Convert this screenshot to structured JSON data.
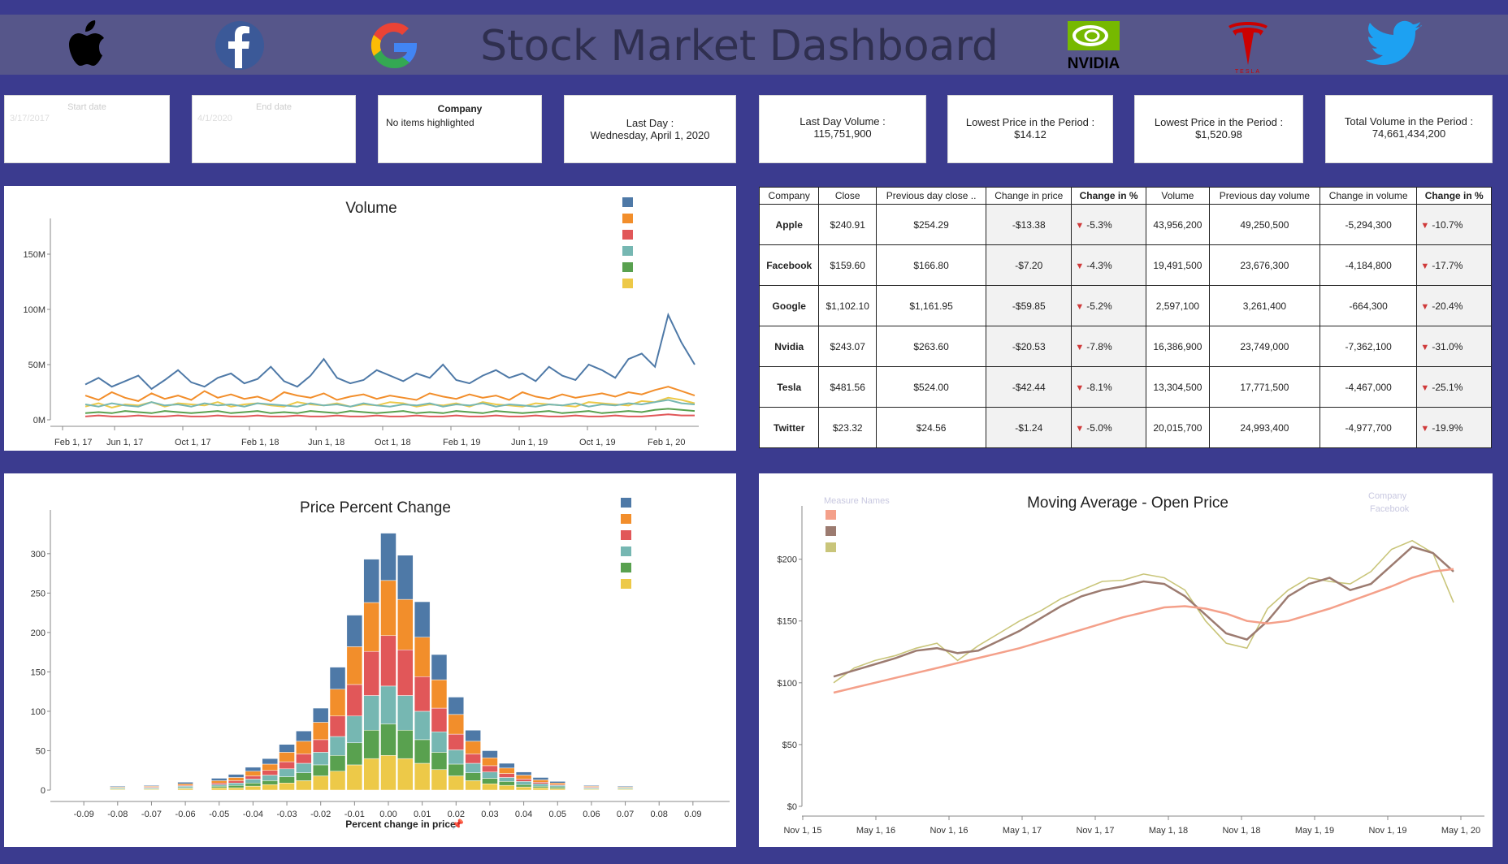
{
  "header": {
    "title": "Stock Market Dashboard",
    "logos": [
      "apple-logo",
      "facebook-logo",
      "google-logo",
      "nvidia-logo",
      "tesla-logo",
      "twitter-logo"
    ],
    "nvidia_text": "NVIDIA",
    "tesla_text": "TESLA"
  },
  "filters": {
    "start": {
      "label": "Start date",
      "value": "3/17/2017"
    },
    "end": {
      "label": "End date",
      "value": "4/1/2020"
    },
    "company": {
      "label": "Company",
      "value": "No items highlighted"
    }
  },
  "kpis": [
    {
      "label": "Last Day :",
      "value": "Wednesday, April 1, 2020"
    },
    {
      "label": "Last Day Volume :",
      "value": "115,751,900"
    },
    {
      "label": "Lowest Price in the Period :",
      "value": "$14.12"
    },
    {
      "label": "Lowest Price in the Period :",
      "value": "$1,520.98"
    },
    {
      "label": "Total Volume in the Period :",
      "value": "74,661,434,200"
    }
  ],
  "table": {
    "headers": [
      "Company",
      "Close",
      "Previous day close ..",
      "Change in price",
      "Change in %",
      "Volume",
      "Previous day volume",
      "Change in volume",
      "Change in %"
    ],
    "rows": [
      [
        "Apple",
        "$240.91",
        "$254.29",
        "-$13.38",
        "-5.3%",
        "43,956,200",
        "49,250,500",
        "-5,294,300",
        "-10.7%"
      ],
      [
        "Facebook",
        "$159.60",
        "$166.80",
        "-$7.20",
        "-4.3%",
        "19,491,500",
        "23,676,300",
        "-4,184,800",
        "-17.7%"
      ],
      [
        "Google",
        "$1,102.10",
        "$1,161.95",
        "-$59.85",
        "-5.2%",
        "2,597,100",
        "3,261,400",
        "-664,300",
        "-20.4%"
      ],
      [
        "Nvidia",
        "$243.07",
        "$263.60",
        "-$20.53",
        "-7.8%",
        "16,386,900",
        "23,749,000",
        "-7,362,100",
        "-31.0%"
      ],
      [
        "Tesla",
        "$481.56",
        "$524.00",
        "-$42.44",
        "-8.1%",
        "13,304,500",
        "17,771,500",
        "-4,467,000",
        "-25.1%"
      ],
      [
        "Twitter",
        "$23.32",
        "$24.56",
        "-$1.24",
        "-5.0%",
        "20,015,700",
        "24,993,400",
        "-4,977,700",
        "-19.9%"
      ]
    ]
  },
  "colors": {
    "apple": "#4e79a7",
    "facebook": "#f28e2b",
    "google": "#e15759",
    "nvidia": "#76b7b2",
    "tesla": "#59a14f",
    "twitter": "#edc948",
    "ma_long": "#f4a08a",
    "ma_short": "#9c7b70",
    "open": "#c9c57a"
  },
  "chart_data": [
    {
      "type": "line",
      "title": "Volume",
      "xlabel": "",
      "ylabel": "",
      "x_ticks": [
        "Feb 1, 17",
        "Jun 1, 17",
        "Oct 1, 17",
        "Feb 1, 18",
        "Jun 1, 18",
        "Oct 1, 18",
        "Feb 1, 19",
        "Jun 1, 19",
        "Oct 1, 19",
        "Feb 1, 20"
      ],
      "y_ticks": [
        "0M",
        "50M",
        "100M",
        "150M"
      ],
      "ylim": [
        0,
        175
      ],
      "series": [
        {
          "values": [
            32,
            38,
            30,
            35,
            40,
            28,
            36,
            45,
            34,
            30,
            38,
            42,
            33,
            37,
            48,
            35,
            30,
            40,
            55,
            38,
            33,
            36,
            45,
            40,
            35,
            42,
            38,
            50,
            36,
            33,
            40,
            45,
            38,
            42,
            35,
            48,
            40,
            36,
            50,
            45,
            38,
            55,
            60,
            48,
            95,
            70,
            50
          ]
        },
        {
          "values": [
            22,
            18,
            25,
            20,
            17,
            24,
            19,
            22,
            18,
            26,
            20,
            23,
            19,
            21,
            17,
            25,
            22,
            20,
            24,
            18,
            21,
            23,
            19,
            22,
            20,
            18,
            24,
            21,
            19,
            23,
            20,
            22,
            18,
            25,
            21,
            19,
            23,
            20,
            22,
            24,
            21,
            25,
            23,
            27,
            30,
            26,
            22
          ]
        },
        {
          "values": [
            3,
            4,
            3,
            3,
            4,
            3,
            3,
            4,
            3,
            3,
            4,
            3,
            3,
            4,
            3,
            3,
            4,
            3,
            3,
            4,
            3,
            3,
            4,
            3,
            3,
            4,
            3,
            3,
            4,
            3,
            3,
            4,
            3,
            3,
            4,
            3,
            3,
            4,
            3,
            3,
            4,
            3,
            3,
            4,
            5,
            4,
            4
          ]
        },
        {
          "values": [
            14,
            12,
            15,
            13,
            12,
            16,
            13,
            14,
            12,
            15,
            13,
            14,
            12,
            15,
            14,
            13,
            12,
            15,
            13,
            14,
            12,
            15,
            13,
            12,
            14,
            13,
            15,
            12,
            14,
            13,
            15,
            12,
            14,
            13,
            12,
            14,
            13,
            15,
            12,
            14,
            13,
            15,
            14,
            16,
            18,
            15,
            14
          ]
        },
        {
          "values": [
            6,
            7,
            6,
            8,
            7,
            6,
            8,
            7,
            6,
            7,
            8,
            6,
            7,
            8,
            6,
            7,
            6,
            8,
            7,
            6,
            8,
            7,
            6,
            7,
            8,
            6,
            7,
            6,
            8,
            7,
            6,
            8,
            7,
            6,
            7,
            8,
            6,
            7,
            8,
            6,
            7,
            8,
            7,
            9,
            10,
            9,
            8
          ]
        },
        {
          "values": [
            12,
            15,
            11,
            14,
            13,
            16,
            12,
            15,
            14,
            13,
            16,
            12,
            14,
            15,
            13,
            12,
            16,
            14,
            13,
            15,
            12,
            14,
            13,
            16,
            15,
            12,
            14,
            13,
            15,
            12,
            16,
            14,
            13,
            12,
            15,
            14,
            13,
            12,
            16,
            15,
            14,
            13,
            17,
            16,
            20,
            18,
            15
          ]
        }
      ]
    },
    {
      "type": "bar",
      "title": "Price Percent Change",
      "xlabel": "Percent change in price",
      "x_ticks": [
        "-0.09",
        "-0.08",
        "-0.07",
        "-0.06",
        "-0.05",
        "-0.04",
        "-0.03",
        "-0.02",
        "-0.01",
        "0.00",
        "0.01",
        "0.02",
        "0.03",
        "0.04",
        "0.05",
        "0.06",
        "0.07",
        "0.08",
        "0.09"
      ],
      "y_ticks": [
        "0",
        "50",
        "100",
        "150",
        "200",
        "250",
        "300"
      ],
      "ylim": [
        0,
        340
      ],
      "categories": [
        -0.08,
        -0.07,
        -0.06,
        -0.05,
        -0.045,
        -0.04,
        -0.035,
        -0.03,
        -0.025,
        -0.02,
        -0.015,
        -0.01,
        -0.005,
        0.0,
        0.005,
        0.01,
        0.015,
        0.02,
        0.025,
        0.03,
        0.035,
        0.04,
        0.045,
        0.05,
        0.06,
        0.07
      ],
      "series": [
        {
          "values": [
            1,
            1,
            2,
            3,
            4,
            5,
            7,
            10,
            13,
            18,
            28,
            40,
            55,
            60,
            56,
            45,
            32,
            22,
            14,
            9,
            6,
            4,
            3,
            2,
            1,
            1
          ]
        },
        {
          "values": [
            1,
            1,
            2,
            3,
            4,
            6,
            8,
            12,
            16,
            22,
            34,
            48,
            62,
            70,
            64,
            50,
            36,
            25,
            16,
            10,
            7,
            5,
            3,
            2,
            1,
            1
          ]
        },
        {
          "values": [
            0,
            1,
            1,
            2,
            3,
            4,
            6,
            9,
            12,
            16,
            26,
            40,
            56,
            64,
            58,
            44,
            30,
            20,
            12,
            8,
            5,
            3,
            2,
            1,
            1,
            0
          ]
        },
        {
          "values": [
            1,
            1,
            2,
            2,
            3,
            5,
            7,
            10,
            12,
            16,
            24,
            34,
            44,
            48,
            44,
            36,
            26,
            18,
            12,
            8,
            5,
            4,
            3,
            2,
            1,
            1
          ]
        },
        {
          "values": [
            1,
            1,
            1,
            2,
            3,
            4,
            5,
            8,
            10,
            14,
            20,
            28,
            36,
            40,
            36,
            30,
            22,
            15,
            10,
            7,
            5,
            3,
            2,
            2,
            1,
            1
          ]
        },
        {
          "values": [
            1,
            1,
            2,
            3,
            3,
            5,
            7,
            9,
            12,
            18,
            24,
            32,
            40,
            44,
            40,
            34,
            26,
            18,
            12,
            8,
            6,
            4,
            3,
            2,
            1,
            1
          ]
        }
      ]
    },
    {
      "type": "line",
      "title": "Moving Average - Open Price",
      "legend_title": "Measure Names",
      "filter": {
        "label": "Company",
        "value": "Facebook"
      },
      "x_ticks": [
        "Nov 1, 15",
        "May 1, 16",
        "Nov 1, 16",
        "May 1, 17",
        "Nov 1, 17",
        "May 1, 18",
        "Nov 1, 18",
        "May 1, 19",
        "Nov 1, 19",
        "May 1, 20"
      ],
      "y_ticks": [
        "$0",
        "$50",
        "$100",
        "$150",
        "$200"
      ],
      "ylim": [
        0,
        230
      ],
      "series": [
        {
          "values": [
            92,
            96,
            100,
            104,
            108,
            112,
            116,
            120,
            124,
            128,
            133,
            138,
            143,
            148,
            153,
            157,
            161,
            162,
            160,
            156,
            150,
            148,
            150,
            155,
            160,
            166,
            172,
            178,
            185,
            190,
            192
          ]
        },
        {
          "values": [
            105,
            110,
            115,
            120,
            126,
            128,
            124,
            126,
            134,
            142,
            152,
            162,
            170,
            175,
            178,
            182,
            180,
            170,
            155,
            140,
            135,
            150,
            170,
            180,
            185,
            175,
            180,
            195,
            210,
            205,
            190
          ]
        },
        {
          "values": [
            100,
            112,
            118,
            122,
            128,
            132,
            118,
            130,
            140,
            150,
            158,
            168,
            175,
            182,
            183,
            188,
            185,
            175,
            150,
            132,
            128,
            160,
            175,
            185,
            182,
            180,
            190,
            208,
            215,
            205,
            165
          ]
        }
      ]
    }
  ]
}
